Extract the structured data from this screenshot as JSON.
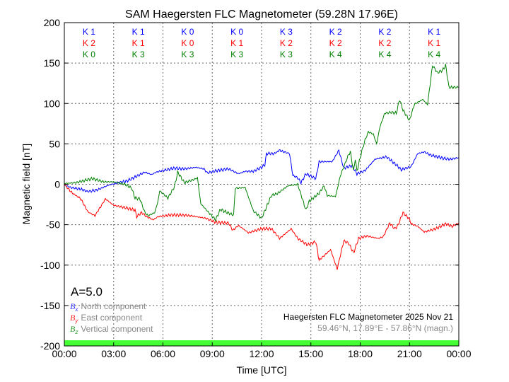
{
  "chart_data": {
    "type": "line",
    "title": "SAM Haegersten FLC Magnetometer (59.28N 17.96E)",
    "xlabel": "Time [UTC]",
    "ylabel": "Magnetic field [nT]",
    "xlim": [
      0,
      24
    ],
    "ylim": [
      -200,
      200
    ],
    "grid": true,
    "x_ticks": [
      "00:00",
      "03:00",
      "06:00",
      "09:00",
      "12:00",
      "15:00",
      "18:00",
      "21:00",
      "00:00"
    ],
    "y_ticks": [
      200,
      150,
      100,
      50,
      0,
      -50,
      -100,
      -150,
      -200
    ],
    "activity_index": "A=5.0",
    "k_indices": {
      "north": [
        "K 1",
        "K 1",
        "K 0",
        "K 0",
        "K 3",
        "K 2",
        "K 2",
        "K 1"
      ],
      "east": [
        "K 2",
        "K 1",
        "K 0",
        "K 1",
        "K 2",
        "K 2",
        "K 2",
        "K 1"
      ],
      "vertical": [
        "K 0",
        "K 3",
        "K 3",
        "K 3",
        "K 3",
        "K 4",
        "K 4",
        "K 4"
      ]
    },
    "legend": {
      "placement": "bottom-left",
      "entries": [
        {
          "symbol": "B",
          "sub": "x",
          "label": "North component",
          "color": "#3333ff"
        },
        {
          "symbol": "B",
          "sub": "y",
          "label": "East component",
          "color": "#ff2a2a"
        },
        {
          "symbol": "B",
          "sub": "z",
          "label": "Vertical component",
          "color": "#2a9a2a"
        }
      ]
    },
    "station_caption": "Haegersten FLC Magnetometer 2025 Nov 21",
    "coords_caption": "59.46°N, 17.89°E - 57.86°N (magn.)",
    "status_bar_color": "#44ff33",
    "series": [
      {
        "name": "North component",
        "color": "#0000ff",
        "points": [
          [
            0,
            -1
          ],
          [
            0.4,
            -4
          ],
          [
            1,
            -6
          ],
          [
            1.43,
            -9
          ],
          [
            2,
            -7
          ],
          [
            2.7,
            -1
          ],
          [
            3.3,
            2
          ],
          [
            3.8,
            4
          ],
          [
            4.3,
            9
          ],
          [
            4.9,
            15
          ],
          [
            5.3,
            12
          ],
          [
            5.6,
            15
          ],
          [
            6,
            17
          ],
          [
            6.7,
            20
          ],
          [
            7.3,
            19
          ],
          [
            8,
            21
          ],
          [
            8.5,
            19
          ],
          [
            8.7,
            14
          ],
          [
            9.3,
            17
          ],
          [
            10,
            19
          ],
          [
            10.3,
            16
          ],
          [
            10.6,
            13
          ],
          [
            11,
            16
          ],
          [
            11.5,
            16
          ],
          [
            12,
            21
          ],
          [
            12.2,
            24
          ],
          [
            12.3,
            38
          ],
          [
            12.8,
            38
          ],
          [
            13.07,
            42
          ],
          [
            13.7,
            38
          ],
          [
            13.9,
            11
          ],
          [
            14.2,
            8
          ],
          [
            14.4,
            2
          ],
          [
            14.7,
            13
          ],
          [
            15.3,
            7
          ],
          [
            15.5,
            28
          ],
          [
            16,
            28
          ],
          [
            16.3,
            28
          ],
          [
            16.7,
            42
          ],
          [
            17,
            20
          ],
          [
            17.5,
            23
          ],
          [
            17.8,
            13
          ],
          [
            18.3,
            17
          ],
          [
            18.9,
            31
          ],
          [
            19.6,
            34
          ],
          [
            20.2,
            24
          ],
          [
            20.5,
            18
          ],
          [
            21.1,
            22
          ],
          [
            21.5,
            38
          ],
          [
            21.9,
            40
          ],
          [
            22.3,
            36
          ],
          [
            22.7,
            34
          ],
          [
            23.1,
            32
          ],
          [
            23.5,
            31
          ],
          [
            24,
            33
          ]
        ]
      },
      {
        "name": "East component",
        "color": "#ff0000",
        "points": [
          [
            0,
            0
          ],
          [
            0.43,
            -10
          ],
          [
            1,
            -18
          ],
          [
            1.43,
            -34
          ],
          [
            1.86,
            -39
          ],
          [
            2.2,
            -28
          ],
          [
            2.5,
            -18
          ],
          [
            3,
            -26
          ],
          [
            3.7,
            -29
          ],
          [
            4.3,
            -32
          ],
          [
            4.4,
            -40
          ],
          [
            4.7,
            -35
          ],
          [
            5,
            -40
          ],
          [
            5.4,
            -44
          ],
          [
            5.7,
            -40
          ],
          [
            6.5,
            -38
          ],
          [
            7.1,
            -38
          ],
          [
            7.7,
            -39
          ],
          [
            8.6,
            -42
          ],
          [
            9.2,
            -47
          ],
          [
            10,
            -48
          ],
          [
            10.25,
            -57
          ],
          [
            10.6,
            -51
          ],
          [
            11.2,
            -60
          ],
          [
            12,
            -55
          ],
          [
            12.6,
            -55
          ],
          [
            13.1,
            -67
          ],
          [
            13.8,
            -55
          ],
          [
            14.2,
            -67
          ],
          [
            14.8,
            -75
          ],
          [
            15.3,
            -71
          ],
          [
            15.5,
            -94
          ],
          [
            16.2,
            -81
          ],
          [
            16.6,
            -105
          ],
          [
            17,
            -70
          ],
          [
            17.3,
            -73
          ],
          [
            17.6,
            -85
          ],
          [
            17.9,
            -67
          ],
          [
            18.4,
            -64
          ],
          [
            19.1,
            -67
          ],
          [
            19.4,
            -65
          ],
          [
            19.8,
            -48
          ],
          [
            20.1,
            -55
          ],
          [
            20.3,
            -51
          ],
          [
            20.6,
            -35
          ],
          [
            21,
            -43
          ],
          [
            21.1,
            -49
          ],
          [
            21.5,
            -52
          ],
          [
            21.9,
            -59
          ],
          [
            22.6,
            -55
          ],
          [
            23.2,
            -49
          ],
          [
            23.6,
            -52
          ],
          [
            24,
            -48
          ]
        ]
      },
      {
        "name": "Vertical component",
        "color": "#008000",
        "points": [
          [
            0,
            1
          ],
          [
            0.7,
            2
          ],
          [
            1.7,
            7
          ],
          [
            2.4,
            3
          ],
          [
            3,
            3
          ],
          [
            3.7,
            0
          ],
          [
            4.1,
            -5
          ],
          [
            4.3,
            -17
          ],
          [
            4.6,
            -18
          ],
          [
            4.9,
            -35
          ],
          [
            5.1,
            -39
          ],
          [
            5.5,
            -35
          ],
          [
            5.7,
            -21
          ],
          [
            5.8,
            -8
          ],
          [
            6.3,
            -17
          ],
          [
            6.7,
            -3
          ],
          [
            6.9,
            15
          ],
          [
            7.3,
            2
          ],
          [
            7.9,
            6
          ],
          [
            8.1,
            8
          ],
          [
            8.3,
            -24
          ],
          [
            8.7,
            -33
          ],
          [
            9.2,
            -44
          ],
          [
            9.5,
            -31
          ],
          [
            9.9,
            -35
          ],
          [
            10.3,
            -38
          ],
          [
            10.4,
            -5
          ],
          [
            11,
            -4
          ],
          [
            11.5,
            -33
          ],
          [
            12,
            -42
          ],
          [
            12.6,
            -14
          ],
          [
            13,
            -11
          ],
          [
            13.6,
            -2
          ],
          [
            14.2,
            0
          ],
          [
            14.7,
            -32
          ],
          [
            14.9,
            -21
          ],
          [
            15.5,
            -11
          ],
          [
            15.8,
            -2
          ],
          [
            16,
            -14
          ],
          [
            16.5,
            -15
          ],
          [
            16.8,
            11
          ],
          [
            17.3,
            37
          ],
          [
            17.4,
            40
          ],
          [
            17.6,
            16
          ],
          [
            17.7,
            32
          ],
          [
            17.8,
            16
          ],
          [
            18.1,
            41
          ],
          [
            18.3,
            55
          ],
          [
            18.5,
            65
          ],
          [
            18.8,
            62
          ],
          [
            19,
            50
          ],
          [
            19.2,
            71
          ],
          [
            19.5,
            88
          ],
          [
            19.9,
            89
          ],
          [
            20.2,
            88
          ],
          [
            20.4,
            105
          ],
          [
            20.6,
            92
          ],
          [
            21,
            79
          ],
          [
            21.3,
            99
          ],
          [
            21.8,
            105
          ],
          [
            22.1,
            99
          ],
          [
            22.4,
            147
          ],
          [
            22.7,
            138
          ],
          [
            23,
            141
          ],
          [
            23.2,
            147
          ],
          [
            23.4,
            120
          ],
          [
            24,
            120
          ]
        ]
      }
    ]
  }
}
